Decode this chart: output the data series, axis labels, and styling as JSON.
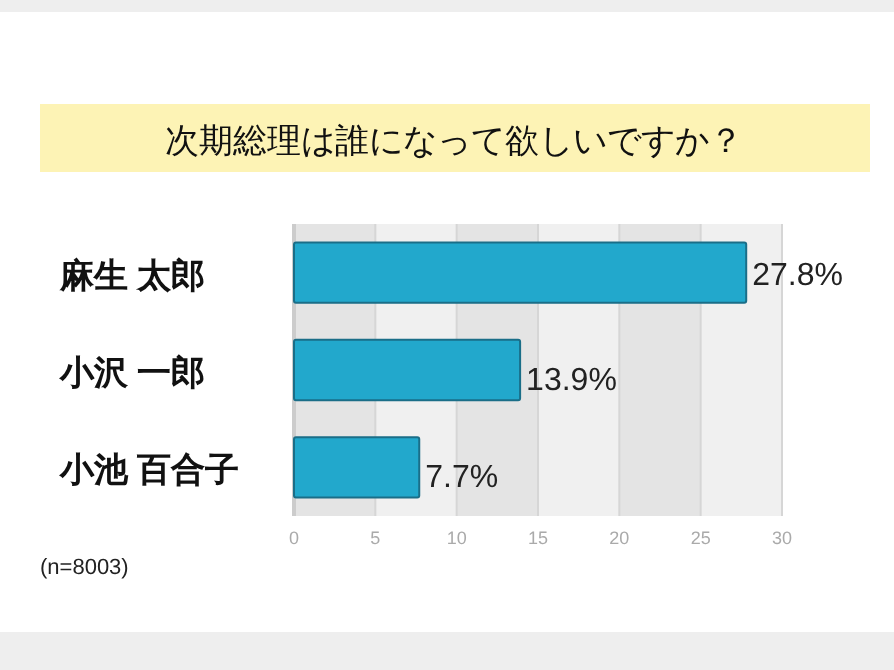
{
  "chart_data": {
    "type": "bar",
    "orientation": "horizontal",
    "title": "次期総理は誰になって欲しいですか？",
    "categories": [
      "麻生 太郎",
      "小沢 一郎",
      "小池 百合子"
    ],
    "values": [
      27.8,
      13.9,
      7.7
    ],
    "value_labels": [
      "27.8%",
      "13.9%",
      "7.7%"
    ],
    "color": "#22a8cc",
    "xlim": [
      0,
      30
    ],
    "xticks": [
      0,
      5,
      10,
      15,
      20,
      25,
      30
    ],
    "grid": "x",
    "annotations": [
      "(n=8003)"
    ]
  }
}
